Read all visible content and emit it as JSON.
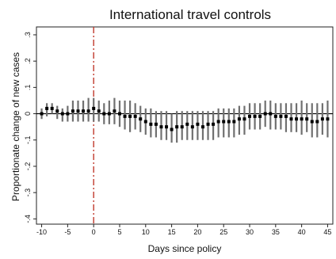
{
  "chart_data": {
    "type": "scatter",
    "title": "International travel controls",
    "xlabel": "Days since policy",
    "ylabel": "Proportionate change of new cases",
    "xlim": [
      -11,
      46
    ],
    "ylim": [
      -0.42,
      0.33
    ],
    "xticks": [
      -10,
      -5,
      0,
      5,
      10,
      15,
      20,
      25,
      30,
      35,
      40,
      45
    ],
    "xtick_labels": [
      "-10",
      "-5",
      "0",
      "5",
      "10",
      "15",
      "20",
      "25",
      "30",
      "35",
      "40",
      "45"
    ],
    "yticks": [
      0.3,
      0.2,
      0.1,
      0,
      -0.1,
      -0.2,
      -0.3,
      -0.4
    ],
    "ytick_labels": [
      ".3",
      ".2",
      ".1",
      "0",
      "-.1",
      "-.2",
      "-.3",
      "-.4"
    ],
    "grid": false,
    "reference_lines": {
      "horizontal_y": 0,
      "vertical_x": 0
    },
    "colors": {
      "points": "#000000",
      "error_bars": "#707070",
      "vertical_line": "#c0392b",
      "zero_line": "#000000"
    },
    "series": [
      {
        "x": [
          -10,
          -9,
          -8,
          -7,
          -6,
          -5,
          -4,
          -3,
          -2,
          -1,
          0,
          1,
          2,
          3,
          4,
          5,
          6,
          7,
          8,
          9,
          10,
          11,
          12,
          13,
          14,
          15,
          16,
          17,
          18,
          19,
          20,
          21,
          22,
          23,
          24,
          25,
          26,
          27,
          28,
          29,
          30,
          31,
          32,
          33,
          34,
          35,
          36,
          37,
          38,
          39,
          40,
          41,
          42,
          43,
          44,
          45
        ],
        "y": [
          0.0,
          0.02,
          0.02,
          0.01,
          0.0,
          0.0,
          0.01,
          0.01,
          0.01,
          0.01,
          0.02,
          0.01,
          0.0,
          0.0,
          0.01,
          0.0,
          -0.01,
          -0.01,
          -0.01,
          -0.02,
          -0.03,
          -0.04,
          -0.04,
          -0.05,
          -0.05,
          -0.06,
          -0.05,
          -0.05,
          -0.04,
          -0.05,
          -0.04,
          -0.05,
          -0.04,
          -0.04,
          -0.03,
          -0.03,
          -0.03,
          -0.03,
          -0.02,
          -0.02,
          -0.01,
          -0.01,
          -0.01,
          0.0,
          0.0,
          -0.01,
          -0.01,
          -0.01,
          -0.02,
          -0.02,
          -0.02,
          -0.02,
          -0.03,
          -0.03,
          -0.02,
          -0.02
        ],
        "lower": [
          -0.02,
          -0.01,
          0.0,
          -0.02,
          -0.03,
          -0.03,
          -0.03,
          -0.03,
          -0.03,
          -0.03,
          -0.03,
          -0.03,
          -0.04,
          -0.04,
          -0.04,
          -0.05,
          -0.06,
          -0.07,
          -0.06,
          -0.07,
          -0.08,
          -0.09,
          -0.09,
          -0.1,
          -0.1,
          -0.11,
          -0.11,
          -0.1,
          -0.1,
          -0.1,
          -0.1,
          -0.1,
          -0.1,
          -0.1,
          -0.09,
          -0.09,
          -0.09,
          -0.09,
          -0.08,
          -0.08,
          -0.06,
          -0.06,
          -0.06,
          -0.05,
          -0.06,
          -0.06,
          -0.06,
          -0.07,
          -0.07,
          -0.07,
          -0.08,
          -0.07,
          -0.09,
          -0.09,
          -0.08,
          -0.09
        ],
        "upper": [
          0.02,
          0.04,
          0.04,
          0.03,
          0.02,
          0.03,
          0.05,
          0.05,
          0.05,
          0.06,
          0.06,
          0.05,
          0.04,
          0.05,
          0.06,
          0.05,
          0.05,
          0.05,
          0.04,
          0.03,
          0.02,
          0.02,
          0.01,
          0.01,
          0.01,
          0.0,
          0.01,
          0.01,
          0.01,
          0.01,
          0.01,
          0.01,
          0.01,
          0.01,
          0.02,
          0.02,
          0.02,
          0.02,
          0.03,
          0.03,
          0.04,
          0.04,
          0.04,
          0.05,
          0.05,
          0.04,
          0.04,
          0.04,
          0.04,
          0.04,
          0.05,
          0.04,
          0.04,
          0.04,
          0.04,
          0.05
        ]
      }
    ]
  }
}
